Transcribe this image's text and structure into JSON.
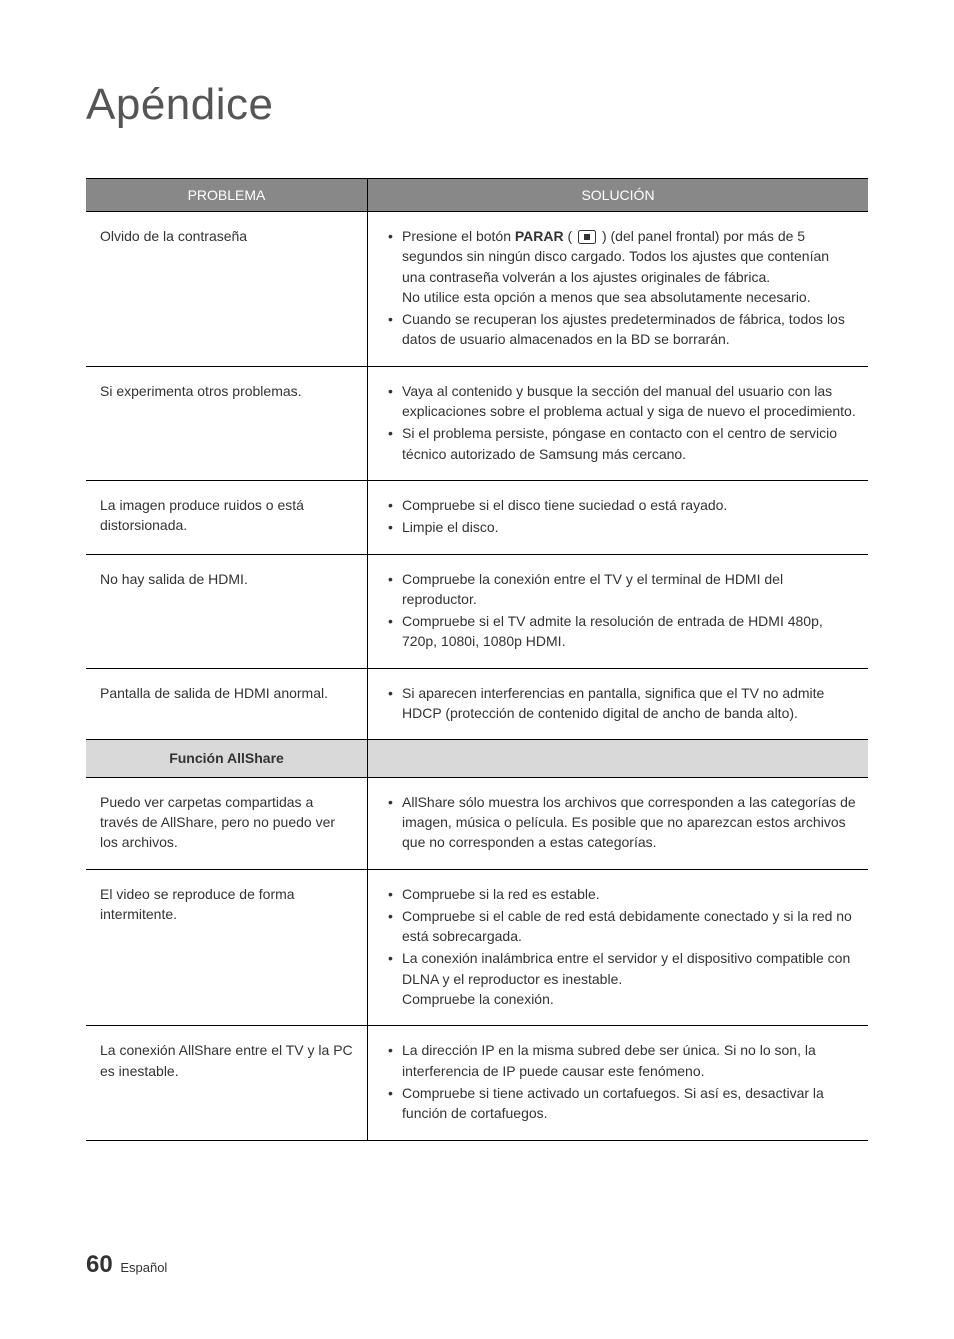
{
  "title": "Apéndice",
  "header": {
    "problem": "PROBLEMA",
    "solution": "SOLUCIÓN"
  },
  "rows": [
    {
      "problem": "Olvido de la contraseña",
      "solutions": [
        {
          "prefix": "Presione el botón ",
          "bold": "PARAR",
          "after_bold": " ( ",
          "has_icon": true,
          "after_icon": " ) (del panel frontal) por más de 5 segundos sin ningún disco cargado. Todos los ajustes que contenían una contraseña volverán a los ajustes originales de fábrica.",
          "sub": "No utilice esta opción a menos que sea absolutamente necesario."
        },
        {
          "text": "Cuando se recuperan los ajustes predeterminados de fábrica, todos los datos de usuario almacenados en la BD se borrarán."
        }
      ]
    },
    {
      "problem": "Si experimenta otros problemas.",
      "solutions": [
        {
          "text": "Vaya al contenido y busque la sección del manual del usuario con las explicaciones sobre el problema actual y siga de nuevo el procedimiento."
        },
        {
          "text": "Si el problema persiste, póngase en contacto con el centro de servicio técnico autorizado de Samsung más cercano."
        }
      ]
    },
    {
      "problem": "La imagen produce ruidos o está distorsionada.",
      "solutions": [
        {
          "text": "Compruebe si el disco tiene suciedad o está rayado."
        },
        {
          "text": "Limpie el disco."
        }
      ]
    },
    {
      "problem": "No hay salida de HDMI.",
      "solutions": [
        {
          "text": "Compruebe la conexión entre el TV y el terminal de HDMI del reproductor."
        },
        {
          "text": "Compruebe si el TV admite la resolución de entrada de HDMI 480p, 720p, 1080i, 1080p HDMI."
        }
      ]
    },
    {
      "problem": "Pantalla de salida de HDMI anormal.",
      "solutions": [
        {
          "text": "Si aparecen interferencias en pantalla, significa que el TV no admite HDCP (protección de contenido digital de ancho de banda alto)."
        }
      ]
    }
  ],
  "section_header": "Función AllShare",
  "rows2": [
    {
      "problem": "Puedo ver carpetas compartidas a través de AllShare, pero no puedo ver los archivos.",
      "solutions": [
        {
          "text": "AllShare sólo muestra los archivos que corresponden a las categorías de imagen, música o película. Es posible que no aparezcan estos archivos que no corresponden a estas categorías."
        }
      ]
    },
    {
      "problem": "El video se reproduce de forma intermitente.",
      "solutions": [
        {
          "text": "Compruebe si la red es estable."
        },
        {
          "text": "Compruebe si el cable de red está debidamente conectado y si la red no está sobrecargada."
        },
        {
          "text": "La conexión inalámbrica entre el servidor y el dispositivo compatible con DLNA y el reproductor es inestable.",
          "sub": "Compruebe la conexión."
        }
      ]
    },
    {
      "problem": "La conexión AllShare entre el TV y la PC es inestable.",
      "solutions": [
        {
          "text": "La dirección IP en la misma subred debe ser única. Si no lo son, la interferencia de IP puede causar este fenómeno."
        },
        {
          "text": "Compruebe si tiene activado un cortafuegos. Si así es, desactivar la función de cortafuegos."
        }
      ]
    }
  ],
  "footer": {
    "page": "60",
    "lang": "Español"
  },
  "styling": {
    "header_bg": "#888888",
    "header_text_color": "#ffffff",
    "section_bg": "#d9d9d9",
    "border_color": "#000000",
    "text_color": "#333333",
    "title_color": "#555555",
    "body_fontsize": 14,
    "title_fontsize": 44
  }
}
